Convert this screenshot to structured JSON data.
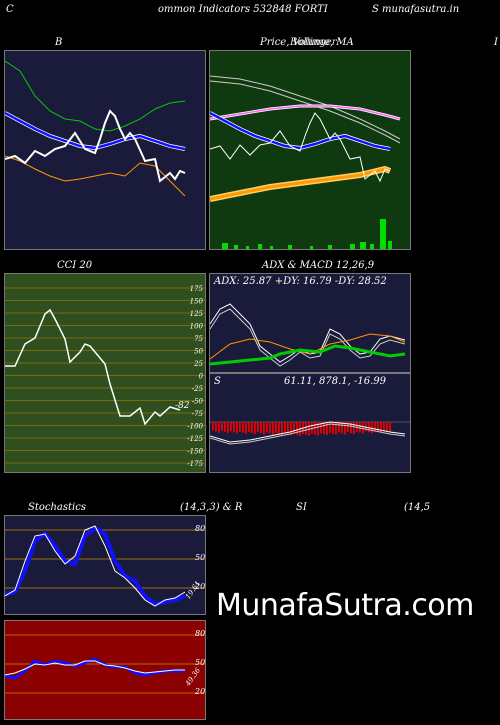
{
  "header": {
    "left_char": "C",
    "title_text": "ommon  Indicators 532848 FORTI",
    "site_text": "S munafasutra.in"
  },
  "bb_panel": {
    "label": "B"
  },
  "price_panel": {
    "label": "Price,  Volume,  MA",
    "overlay_label": "Bollinger"
  },
  "right_edge_label": "I",
  "cci_panel": {
    "label": "CCI 20",
    "ticks": [
      "175",
      "150",
      "125",
      "100",
      "75",
      "50",
      "25",
      "0",
      "-25",
      "-50",
      "-75",
      "-100",
      "-125",
      "-150",
      "-175"
    ],
    "current_value_label": "-82"
  },
  "adx_panel": {
    "label": "ADX  & MACD 12,26,9",
    "readout": "ADX: 25.87  +DY: 16.79 -DY: 28.52"
  },
  "macd_panel": {
    "left_label": "S",
    "readout": "61.11,  878.1,  -16.99"
  },
  "stoch_header": {
    "label_left": "Stochastics",
    "label_mid": "(14,3,3) & R",
    "label_si": "SI",
    "label_right": "(14,5"
  },
  "stoch_panel": {
    "ticks": [
      "80",
      "50",
      "20"
    ],
    "current_value_label": "19.61"
  },
  "rsi_panel": {
    "ticks": [
      "80",
      "50",
      "20"
    ],
    "current_value_label": "49.36"
  },
  "watermark": "MunafaSutra.com",
  "colors": {
    "navy_bg": "#1a1a3a",
    "green_bg": "#0f3a0f",
    "cci_bg": "#2f4f1f",
    "rsi_bg": "#8b0000",
    "blue_line": "#1010ff",
    "orange_line": "#ff9900",
    "green_line": "#00cc00",
    "magenta_line": "#ff66ff",
    "bright_green": "#00ff00"
  }
}
